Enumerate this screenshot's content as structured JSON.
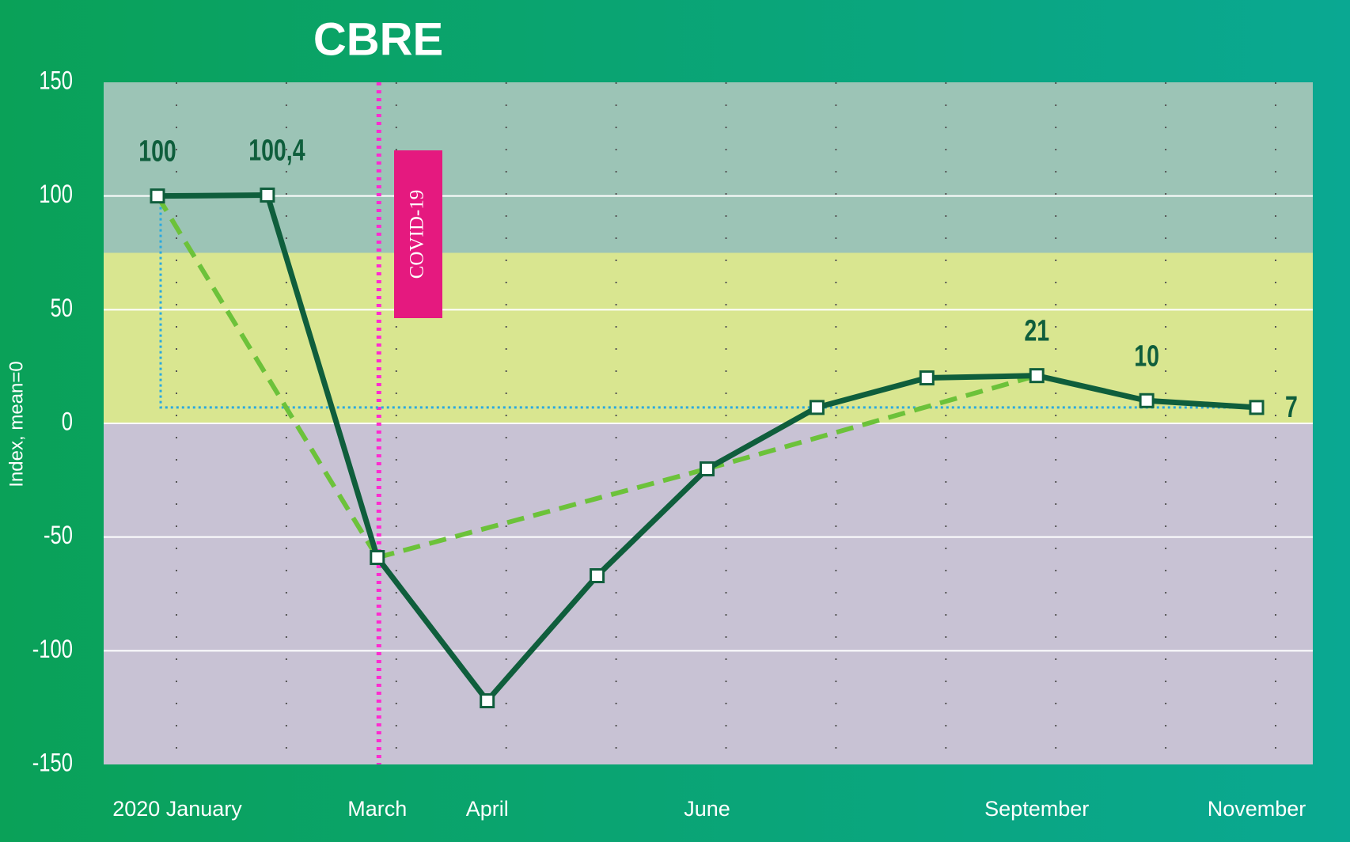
{
  "chart_data": {
    "type": "line",
    "title": "CBRE",
    "y_label": "Index, mean=0",
    "categories": [
      "2020 January",
      null,
      "March",
      "April",
      null,
      "June",
      null,
      null,
      "September",
      null,
      "November"
    ],
    "series": [
      {
        "color": "#0f5e3c",
        "values": [
          100,
          100.4,
          -59,
          -122,
          -67,
          -20,
          7,
          20,
          21,
          10,
          7
        ],
        "value_labels": [
          "100",
          "100,4",
          null,
          null,
          null,
          null,
          null,
          null,
          "21",
          "10",
          "7"
        ]
      },
      {
        "color": "#6cc23a",
        "dashed": true,
        "values": [
          100,
          null,
          -59,
          null,
          null,
          -20,
          null,
          null,
          21,
          null,
          null
        ]
      }
    ],
    "annotation": "COVID-19",
    "bands": [
      {
        "from": 75,
        "to": 150,
        "color": "#9cc4b6"
      },
      {
        "from": 0,
        "to": 75,
        "color": "#d9e690"
      },
      {
        "from": -150,
        "to": 0,
        "color": "#c8c2d4"
      }
    ],
    "ylim": [
      -150,
      150
    ],
    "yticks": [
      -150,
      -100,
      -50,
      0,
      50,
      100,
      150
    ],
    "grid": true
  }
}
